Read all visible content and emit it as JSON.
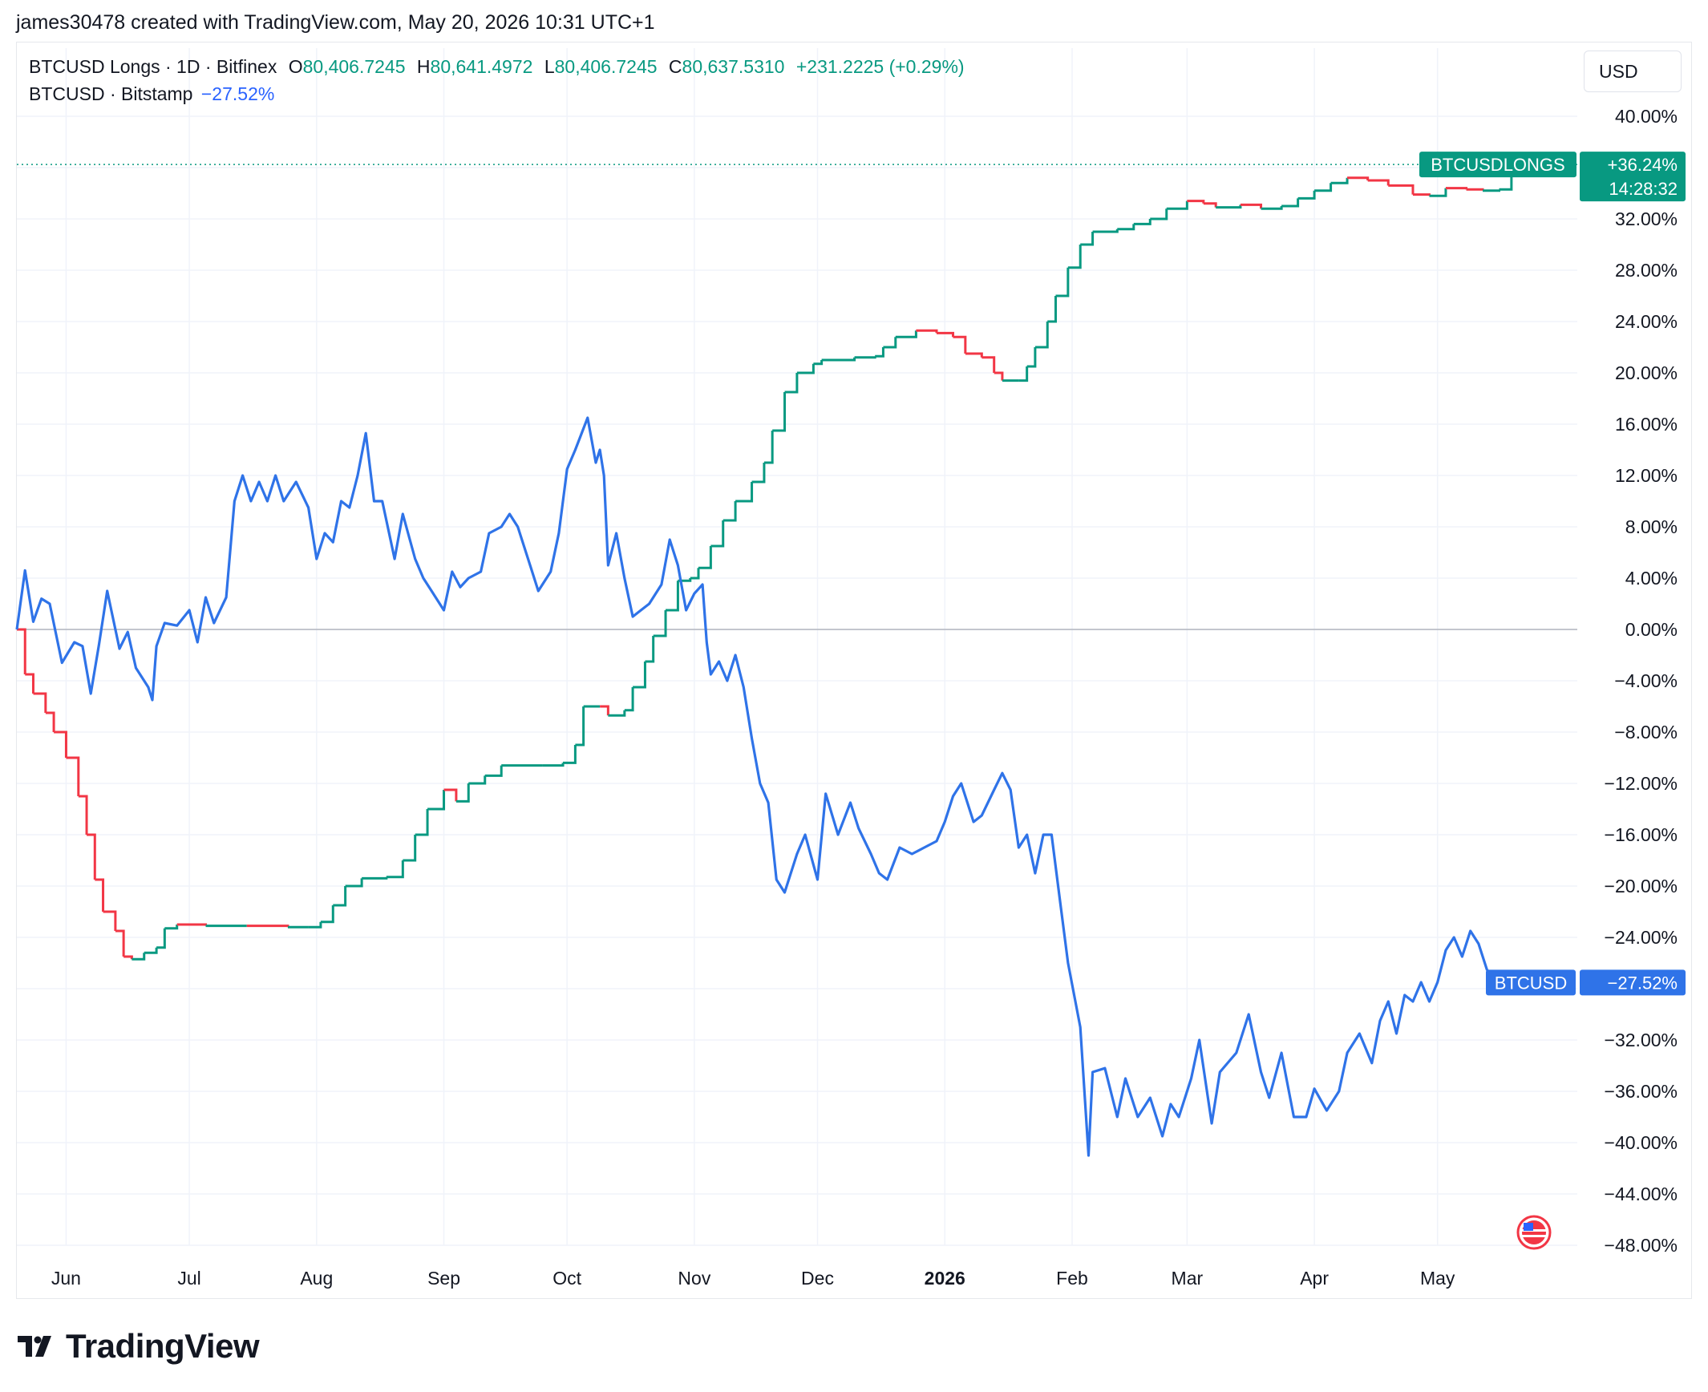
{
  "header": {
    "text": "james30478 created with TradingView.com, May 20, 2026 10:31 UTC+1"
  },
  "legend": {
    "series1": {
      "name": "BTCUSD Longs · 1D · Bitfinex",
      "o_label": "O",
      "o_value": "80,406.7245",
      "h_label": "H",
      "h_value": "80,641.4972",
      "l_label": "L",
      "l_value": "80,406.7245",
      "c_label": "C",
      "c_value": "80,637.5310",
      "change": "+231.2225 (+0.29%)"
    },
    "series2": {
      "name": "BTCUSD · Bitstamp",
      "change": "−27.52%"
    }
  },
  "currency": "USD",
  "brand": {
    "name": "TradingView"
  },
  "colors": {
    "longs_up": "#089981",
    "longs_down": "#f23645",
    "btc_line": "#2f73e8",
    "grid": "#f0f3fa",
    "axis_text": "#131722"
  },
  "icons": {
    "brand_logo": "tradingview-logo-icon",
    "flag": "us-flag-icon"
  },
  "chart_data": {
    "type": "line",
    "y_unit": "%",
    "ylim": [
      -48,
      40
    ],
    "y_ticks": [
      "40.00%",
      "36.00%",
      "32.00%",
      "28.00%",
      "24.00%",
      "20.00%",
      "16.00%",
      "12.00%",
      "8.00%",
      "4.00%",
      "0.00%",
      "−4.00%",
      "−8.00%",
      "−12.00%",
      "−16.00%",
      "−20.00%",
      "−24.00%",
      "−28.00%",
      "−32.00%",
      "−36.00%",
      "−40.00%",
      "−44.00%",
      "−48.00%"
    ],
    "x_ticks": [
      "Jun",
      "Jul",
      "Aug",
      "Sep",
      "Oct",
      "Nov",
      "Dec",
      "2026",
      "Feb",
      "Mar",
      "Apr",
      "May"
    ],
    "x_range": [
      "2025-05-20",
      "2026-05-20"
    ],
    "grid": true,
    "series": [
      {
        "name": "BTCUSDLONGS",
        "style": "step",
        "last_label": "+36.24%",
        "countdown": "14:28:32",
        "points": [
          [
            "2025-05-20",
            0
          ],
          [
            "2025-05-22",
            -3.5
          ],
          [
            "2025-05-24",
            -5
          ],
          [
            "2025-05-27",
            -6.5
          ],
          [
            "2025-05-29",
            -8
          ],
          [
            "2025-06-01",
            -10
          ],
          [
            "2025-06-04",
            -13
          ],
          [
            "2025-06-06",
            -16
          ],
          [
            "2025-06-08",
            -19.5
          ],
          [
            "2025-06-10",
            -22
          ],
          [
            "2025-06-13",
            -23.5
          ],
          [
            "2025-06-15",
            -25.5
          ],
          [
            "2025-06-17",
            -25.7
          ],
          [
            "2025-06-20",
            -25.2
          ],
          [
            "2025-06-23",
            -24.8
          ],
          [
            "2025-06-25",
            -23.3
          ],
          [
            "2025-06-28",
            -23
          ],
          [
            "2025-07-05",
            -23.1
          ],
          [
            "2025-07-15",
            -23.1
          ],
          [
            "2025-07-25",
            -23.2
          ],
          [
            "2025-07-30",
            -23.2
          ],
          [
            "2025-08-02",
            -22.8
          ],
          [
            "2025-08-05",
            -21.5
          ],
          [
            "2025-08-08",
            -20
          ],
          [
            "2025-08-12",
            -19.4
          ],
          [
            "2025-08-18",
            -19.3
          ],
          [
            "2025-08-22",
            -18
          ],
          [
            "2025-08-25",
            -16
          ],
          [
            "2025-08-28",
            -14
          ],
          [
            "2025-09-01",
            -12.5
          ],
          [
            "2025-09-04",
            -13.4
          ],
          [
            "2025-09-07",
            -12
          ],
          [
            "2025-09-11",
            -11.4
          ],
          [
            "2025-09-15",
            -10.6
          ],
          [
            "2025-09-25",
            -10.6
          ],
          [
            "2025-09-30",
            -10.4
          ],
          [
            "2025-10-03",
            -9
          ],
          [
            "2025-10-05",
            -6
          ],
          [
            "2025-10-09",
            -6
          ],
          [
            "2025-10-11",
            -6.7
          ],
          [
            "2025-10-15",
            -6.3
          ],
          [
            "2025-10-17",
            -4.5
          ],
          [
            "2025-10-20",
            -2.5
          ],
          [
            "2025-10-22",
            -0.5
          ],
          [
            "2025-10-25",
            1.5
          ],
          [
            "2025-10-28",
            3.8
          ],
          [
            "2025-10-31",
            4
          ],
          [
            "2025-11-02",
            4.8
          ],
          [
            "2025-11-05",
            6.5
          ],
          [
            "2025-11-08",
            8.5
          ],
          [
            "2025-11-11",
            10
          ],
          [
            "2025-11-15",
            11.5
          ],
          [
            "2025-11-18",
            13
          ],
          [
            "2025-11-20",
            15.5
          ],
          [
            "2025-11-23",
            18.5
          ],
          [
            "2025-11-26",
            20
          ],
          [
            "2025-11-30",
            20.7
          ],
          [
            "2025-12-02",
            21
          ],
          [
            "2025-12-10",
            21.2
          ],
          [
            "2025-12-15",
            21.3
          ],
          [
            "2025-12-17",
            22
          ],
          [
            "2025-12-20",
            22.8
          ],
          [
            "2025-12-25",
            23.3
          ],
          [
            "2025-12-30",
            23.1
          ],
          [
            "2026-01-03",
            22.8
          ],
          [
            "2026-01-06",
            21.5
          ],
          [
            "2026-01-10",
            21.2
          ],
          [
            "2026-01-13",
            20
          ],
          [
            "2026-01-15",
            19.4
          ],
          [
            "2026-01-19",
            19.4
          ],
          [
            "2026-01-21",
            20.5
          ],
          [
            "2026-01-23",
            22
          ],
          [
            "2026-01-26",
            24
          ],
          [
            "2026-01-28",
            26
          ],
          [
            "2026-01-31",
            28.2
          ],
          [
            "2026-02-03",
            30
          ],
          [
            "2026-02-06",
            31
          ],
          [
            "2026-02-12",
            31.2
          ],
          [
            "2026-02-16",
            31.6
          ],
          [
            "2026-02-20",
            32
          ],
          [
            "2026-02-24",
            32.8
          ],
          [
            "2026-03-01",
            33.4
          ],
          [
            "2026-03-05",
            33.2
          ],
          [
            "2026-03-08",
            32.9
          ],
          [
            "2026-03-14",
            33.1
          ],
          [
            "2026-03-19",
            32.8
          ],
          [
            "2026-03-24",
            33
          ],
          [
            "2026-03-28",
            33.6
          ],
          [
            "2026-04-01",
            34.2
          ],
          [
            "2026-04-05",
            34.8
          ],
          [
            "2026-04-09",
            35.2
          ],
          [
            "2026-04-14",
            35
          ],
          [
            "2026-04-19",
            34.6
          ],
          [
            "2026-04-25",
            33.9
          ],
          [
            "2026-04-29",
            33.8
          ],
          [
            "2026-05-03",
            34.4
          ],
          [
            "2026-05-08",
            34.3
          ],
          [
            "2026-05-12",
            34.2
          ],
          [
            "2026-05-16",
            34.3
          ],
          [
            "2026-05-19",
            36.24
          ]
        ]
      },
      {
        "name": "BTCUSD",
        "style": "line",
        "last_label": "−27.52%",
        "points": [
          [
            "2025-05-20",
            0
          ],
          [
            "2025-05-22",
            4.6
          ],
          [
            "2025-05-24",
            0.6
          ],
          [
            "2025-05-26",
            2.4
          ],
          [
            "2025-05-28",
            2
          ],
          [
            "2025-05-31",
            -2.6
          ],
          [
            "2025-06-03",
            -1
          ],
          [
            "2025-06-05",
            -1.3
          ],
          [
            "2025-06-07",
            -5
          ],
          [
            "2025-06-09",
            -1.2
          ],
          [
            "2025-06-11",
            3
          ],
          [
            "2025-06-14",
            -1.5
          ],
          [
            "2025-06-16",
            -0.2
          ],
          [
            "2025-06-18",
            -3
          ],
          [
            "2025-06-21",
            -4.5
          ],
          [
            "2025-06-22",
            -5.5
          ],
          [
            "2025-06-23",
            -1.3
          ],
          [
            "2025-06-25",
            0.5
          ],
          [
            "2025-06-28",
            0.3
          ],
          [
            "2025-07-01",
            1.5
          ],
          [
            "2025-07-03",
            -1
          ],
          [
            "2025-07-05",
            2.5
          ],
          [
            "2025-07-07",
            0.5
          ],
          [
            "2025-07-10",
            2.5
          ],
          [
            "2025-07-12",
            10
          ],
          [
            "2025-07-14",
            12
          ],
          [
            "2025-07-16",
            10
          ],
          [
            "2025-07-18",
            11.5
          ],
          [
            "2025-07-20",
            10
          ],
          [
            "2025-07-22",
            12
          ],
          [
            "2025-07-24",
            10
          ],
          [
            "2025-07-27",
            11.5
          ],
          [
            "2025-07-30",
            9.5
          ],
          [
            "2025-08-01",
            5.5
          ],
          [
            "2025-08-03",
            7.5
          ],
          [
            "2025-08-05",
            6.8
          ],
          [
            "2025-08-07",
            10
          ],
          [
            "2025-08-09",
            9.5
          ],
          [
            "2025-08-11",
            12
          ],
          [
            "2025-08-13",
            15.3
          ],
          [
            "2025-08-15",
            10
          ],
          [
            "2025-08-17",
            10
          ],
          [
            "2025-08-20",
            5.5
          ],
          [
            "2025-08-22",
            9
          ],
          [
            "2025-08-25",
            5.5
          ],
          [
            "2025-08-27",
            4
          ],
          [
            "2025-08-29",
            3
          ],
          [
            "2025-09-01",
            1.5
          ],
          [
            "2025-09-03",
            4.5
          ],
          [
            "2025-09-05",
            3.3
          ],
          [
            "2025-09-07",
            4
          ],
          [
            "2025-09-10",
            4.5
          ],
          [
            "2025-09-12",
            7.5
          ],
          [
            "2025-09-15",
            8
          ],
          [
            "2025-09-17",
            9
          ],
          [
            "2025-09-19",
            8
          ],
          [
            "2025-09-22",
            5
          ],
          [
            "2025-09-24",
            3
          ],
          [
            "2025-09-27",
            4.5
          ],
          [
            "2025-09-29",
            7.5
          ],
          [
            "2025-10-01",
            12.5
          ],
          [
            "2025-10-03",
            14
          ],
          [
            "2025-10-06",
            16.5
          ],
          [
            "2025-10-08",
            13
          ],
          [
            "2025-10-09",
            14
          ],
          [
            "2025-10-10",
            12
          ],
          [
            "2025-10-11",
            5
          ],
          [
            "2025-10-13",
            7.5
          ],
          [
            "2025-10-15",
            4
          ],
          [
            "2025-10-17",
            1
          ],
          [
            "2025-10-19",
            1.5
          ],
          [
            "2025-10-21",
            2
          ],
          [
            "2025-10-24",
            3.5
          ],
          [
            "2025-10-26",
            7
          ],
          [
            "2025-10-28",
            5
          ],
          [
            "2025-10-30",
            1.5
          ],
          [
            "2025-11-01",
            2.8
          ],
          [
            "2025-11-03",
            3.5
          ],
          [
            "2025-11-04",
            -1
          ],
          [
            "2025-11-05",
            -3.5
          ],
          [
            "2025-11-07",
            -2.5
          ],
          [
            "2025-11-09",
            -4
          ],
          [
            "2025-11-11",
            -2
          ],
          [
            "2025-11-13",
            -4.5
          ],
          [
            "2025-11-15",
            -8.5
          ],
          [
            "2025-11-17",
            -12
          ],
          [
            "2025-11-19",
            -13.5
          ],
          [
            "2025-11-21",
            -19.5
          ],
          [
            "2025-11-23",
            -20.5
          ],
          [
            "2025-11-26",
            -17.5
          ],
          [
            "2025-11-28",
            -16
          ],
          [
            "2025-12-01",
            -19.5
          ],
          [
            "2025-12-03",
            -12.8
          ],
          [
            "2025-12-06",
            -16
          ],
          [
            "2025-12-09",
            -13.5
          ],
          [
            "2025-12-11",
            -15.5
          ],
          [
            "2025-12-14",
            -17.5
          ],
          [
            "2025-12-16",
            -19
          ],
          [
            "2025-12-18",
            -19.5
          ],
          [
            "2025-12-21",
            -17
          ],
          [
            "2025-12-24",
            -17.5
          ],
          [
            "2025-12-27",
            -17
          ],
          [
            "2025-12-30",
            -16.5
          ],
          [
            "2026-01-01",
            -15
          ],
          [
            "2026-01-03",
            -13
          ],
          [
            "2026-01-05",
            -12
          ],
          [
            "2026-01-08",
            -15
          ],
          [
            "2026-01-10",
            -14.5
          ],
          [
            "2026-01-13",
            -12.5
          ],
          [
            "2026-01-15",
            -11.2
          ],
          [
            "2026-01-17",
            -12.5
          ],
          [
            "2026-01-19",
            -17
          ],
          [
            "2026-01-21",
            -16
          ],
          [
            "2026-01-23",
            -19
          ],
          [
            "2026-01-25",
            -16
          ],
          [
            "2026-01-27",
            -16
          ],
          [
            "2026-01-29",
            -21
          ],
          [
            "2026-01-31",
            -26
          ],
          [
            "2026-02-03",
            -31
          ],
          [
            "2026-02-05",
            -41
          ],
          [
            "2026-02-06",
            -34.5
          ],
          [
            "2026-02-09",
            -34.2
          ],
          [
            "2026-02-12",
            -38
          ],
          [
            "2026-02-14",
            -35
          ],
          [
            "2026-02-17",
            -38
          ],
          [
            "2026-02-20",
            -36.5
          ],
          [
            "2026-02-23",
            -39.5
          ],
          [
            "2026-02-25",
            -37
          ],
          [
            "2026-02-27",
            -38
          ],
          [
            "2026-03-02",
            -35
          ],
          [
            "2026-03-04",
            -32
          ],
          [
            "2026-03-07",
            -38.5
          ],
          [
            "2026-03-09",
            -34.5
          ],
          [
            "2026-03-13",
            -33
          ],
          [
            "2026-03-16",
            -30
          ],
          [
            "2026-03-19",
            -34.5
          ],
          [
            "2026-03-21",
            -36.5
          ],
          [
            "2026-03-24",
            -33
          ],
          [
            "2026-03-27",
            -38
          ],
          [
            "2026-03-30",
            -38
          ],
          [
            "2026-04-01",
            -35.8
          ],
          [
            "2026-04-04",
            -37.5
          ],
          [
            "2026-04-07",
            -36
          ],
          [
            "2026-04-09",
            -33
          ],
          [
            "2026-04-12",
            -31.5
          ],
          [
            "2026-04-15",
            -33.8
          ],
          [
            "2026-04-17",
            -30.5
          ],
          [
            "2026-04-19",
            -29
          ],
          [
            "2026-04-21",
            -31.5
          ],
          [
            "2026-04-23",
            -28.5
          ],
          [
            "2026-04-25",
            -29
          ],
          [
            "2026-04-27",
            -27.5
          ],
          [
            "2026-04-29",
            -29
          ],
          [
            "2026-05-01",
            -27.5
          ],
          [
            "2026-05-03",
            -25
          ],
          [
            "2026-05-05",
            -24
          ],
          [
            "2026-05-07",
            -25.5
          ],
          [
            "2026-05-09",
            -23.5
          ],
          [
            "2026-05-11",
            -24.5
          ],
          [
            "2026-05-13",
            -26.5
          ],
          [
            "2026-05-15",
            -27.52
          ]
        ]
      }
    ]
  }
}
